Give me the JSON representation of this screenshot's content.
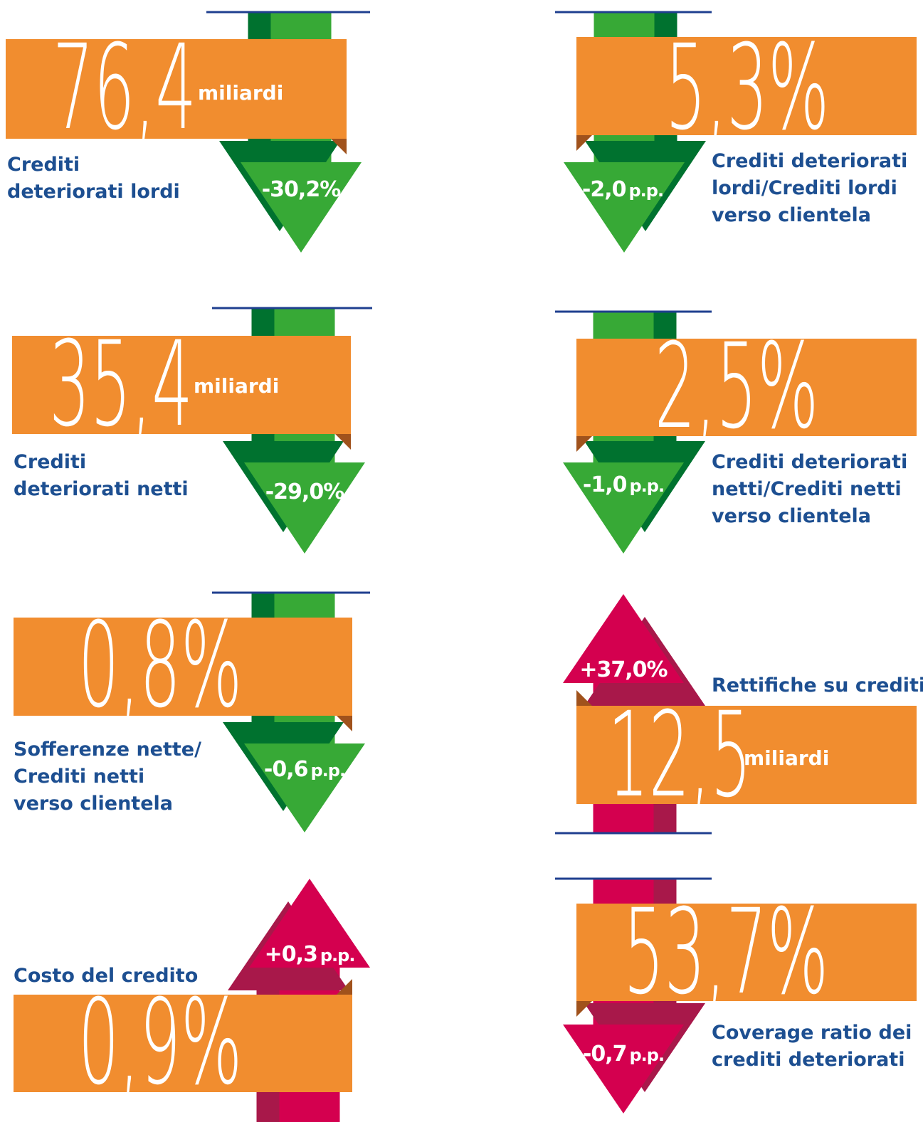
{
  "tiles": [
    {
      "value": "76,4",
      "unit": "miliardi",
      "label": [
        "Crediti",
        "deteriorati lordi"
      ],
      "change": "-30,2%"
    },
    {
      "value": "5,3%",
      "label": [
        "Crediti deteriorati",
        "lordi/Crediti lordi",
        "verso clientela"
      ],
      "change": "-2,0",
      "change_unit": "p.p."
    },
    {
      "value": "35,4",
      "unit": "miliardi",
      "label": [
        "Crediti",
        "deteriorati netti"
      ],
      "change": "-29,0%"
    },
    {
      "value": "2,5%",
      "label": [
        "Crediti deteriorati",
        "netti/Crediti netti",
        "verso clientela"
      ],
      "change": "-1,0",
      "change_unit": "p.p."
    },
    {
      "value": "0,8%",
      "label": [
        "Sofferenze nette/",
        "Crediti netti",
        "verso clientela"
      ],
      "change": "-0,6",
      "change_unit": "p.p."
    },
    {
      "value": "12,5",
      "unit": "miliardi",
      "label": [
        "Rettifiche su crediti"
      ],
      "change": "+37,0%"
    },
    {
      "value": "0,9%",
      "label": [
        "Costo del credito"
      ],
      "change": "+0,3",
      "change_unit": "p.p."
    },
    {
      "value": "53,7%",
      "label": [
        "Coverage ratio dei",
        "crediti deteriorati"
      ],
      "change": "-0,7",
      "change_unit": "p.p."
    }
  ]
}
